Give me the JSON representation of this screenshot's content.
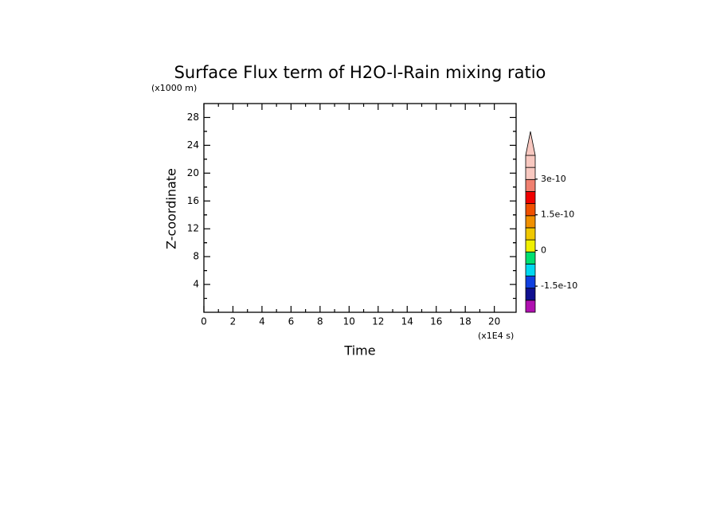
{
  "chart_data": {
    "type": "contour",
    "title": "Surface Flux term of H2O-l-Rain mixing ratio",
    "y_unit": "(x1000 m)",
    "x_unit": "(x1E4 s)",
    "x_label": "Time",
    "y_label": "Z-coordinate",
    "xlim": [
      0,
      21.5
    ],
    "xticks": [
      0,
      2,
      4,
      6,
      8,
      10,
      12,
      14,
      16,
      18,
      20
    ],
    "ylim": [
      0,
      30
    ],
    "yticks": [
      4,
      8,
      12,
      16,
      20,
      24,
      28
    ],
    "colorbar": {
      "lim": [
        -2.6e-10,
        4e-10
      ],
      "ticks": [
        -1.5e-10,
        0,
        1.5e-10,
        3e-10
      ],
      "colors": [
        "#b010b0",
        "#101090",
        "#1040e0",
        "#00d8f0",
        "#00e070",
        "#f0f000",
        "#f0c800",
        "#f09000",
        "#f05000",
        "#f00000",
        "#f08070",
        "#f8c8c0",
        "#f8c8c0"
      ]
    }
  }
}
